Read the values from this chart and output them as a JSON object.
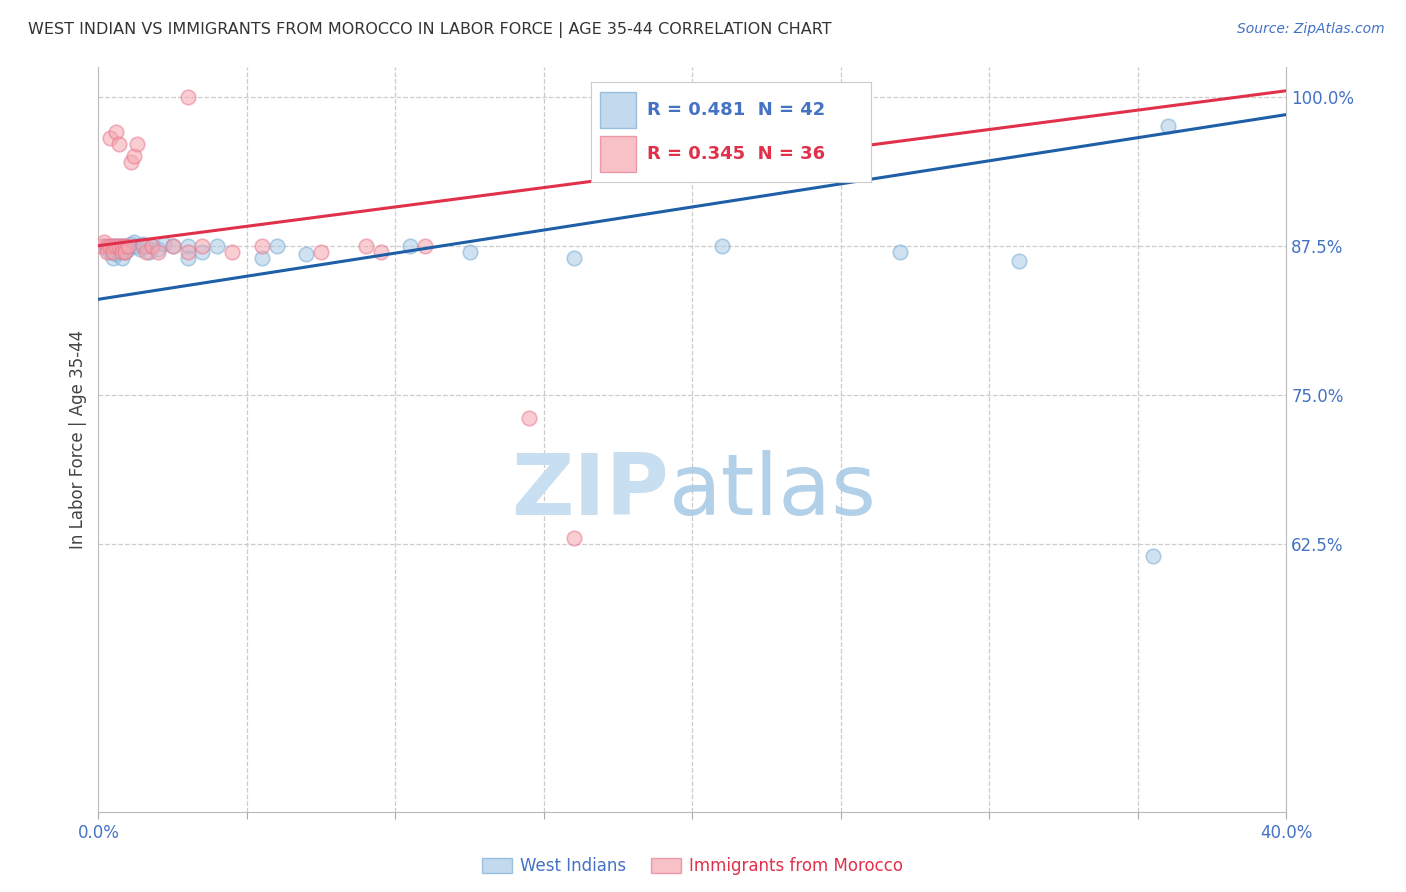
{
  "title": "WEST INDIAN VS IMMIGRANTS FROM MOROCCO IN LABOR FORCE | AGE 35-44 CORRELATION CHART",
  "source": "Source: ZipAtlas.com",
  "ylabel": "In Labor Force | Age 35-44",
  "watermark_zip": "ZIP",
  "watermark_atlas": "atlas",
  "x_min": 0.0,
  "x_max": 0.4,
  "y_min": 0.4,
  "y_max": 1.025,
  "blue_fill": "#aac9e8",
  "blue_edge": "#7aaed4",
  "pink_fill": "#f4a7b0",
  "pink_edge": "#e87a90",
  "blue_line": "#1e5fa8",
  "pink_line": "#e0304a",
  "legend_blue_text": "#4472c4",
  "legend_pink_text": "#e0304a",
  "axis_label_color": "#4472c4",
  "title_color": "#333333",
  "R_blue": 0.481,
  "N_blue": 42,
  "R_pink": 0.345,
  "N_pink": 36,
  "blue_line_x0": 0.0,
  "blue_line_y0": 0.83,
  "blue_line_x1": 0.4,
  "blue_line_y1": 0.985,
  "pink_line_x0": 0.0,
  "pink_line_y0": 0.875,
  "pink_line_x1": 0.4,
  "pink_line_y1": 1.005,
  "wi_x": [
    0.002,
    0.003,
    0.004,
    0.005,
    0.005,
    0.006,
    0.006,
    0.007,
    0.007,
    0.008,
    0.008,
    0.009,
    0.009,
    0.01,
    0.01,
    0.011,
    0.012,
    0.012,
    0.013,
    0.014,
    0.015,
    0.016,
    0.017,
    0.018,
    0.02,
    0.022,
    0.025,
    0.03,
    0.03,
    0.035,
    0.04,
    0.055,
    0.06,
    0.07,
    0.105,
    0.125,
    0.16,
    0.21,
    0.27,
    0.31,
    0.355,
    0.36
  ],
  "wi_y": [
    0.875,
    0.872,
    0.87,
    0.865,
    0.875,
    0.875,
    0.868,
    0.875,
    0.87,
    0.875,
    0.865,
    0.875,
    0.87,
    0.872,
    0.875,
    0.876,
    0.875,
    0.878,
    0.875,
    0.872,
    0.876,
    0.875,
    0.87,
    0.875,
    0.872,
    0.876,
    0.875,
    0.875,
    0.865,
    0.87,
    0.875,
    0.865,
    0.875,
    0.868,
    0.875,
    0.87,
    0.865,
    0.875,
    0.87,
    0.862,
    0.615,
    0.975
  ],
  "mo_x": [
    0.001,
    0.002,
    0.003,
    0.003,
    0.004,
    0.004,
    0.005,
    0.005,
    0.006,
    0.006,
    0.007,
    0.007,
    0.008,
    0.008,
    0.009,
    0.009,
    0.01,
    0.011,
    0.012,
    0.013,
    0.015,
    0.016,
    0.018,
    0.02,
    0.025,
    0.03,
    0.035,
    0.045,
    0.055,
    0.075,
    0.09,
    0.095,
    0.11,
    0.145,
    0.16,
    0.03
  ],
  "mo_y": [
    0.875,
    0.878,
    0.875,
    0.87,
    0.875,
    0.965,
    0.875,
    0.87,
    0.875,
    0.97,
    0.875,
    0.96,
    0.875,
    0.87,
    0.875,
    0.87,
    0.875,
    0.945,
    0.95,
    0.96,
    0.875,
    0.87,
    0.875,
    0.87,
    0.875,
    0.87,
    0.875,
    0.87,
    0.875,
    0.87,
    0.875,
    0.87,
    0.875,
    0.73,
    0.63,
    1.0
  ]
}
